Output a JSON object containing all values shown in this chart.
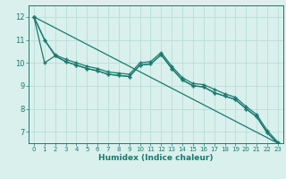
{
  "xlabel": "Humidex (Indice chaleur)",
  "bg_color": "#d9f0ed",
  "grid_color": "#b8ddd8",
  "line_color": "#1a7a6e",
  "xlim": [
    -0.5,
    23.5
  ],
  "ylim": [
    6.5,
    12.5
  ],
  "yticks": [
    7,
    8,
    9,
    10,
    11,
    12
  ],
  "xticks": [
    0,
    1,
    2,
    3,
    4,
    5,
    6,
    7,
    8,
    9,
    10,
    11,
    12,
    13,
    14,
    15,
    16,
    17,
    18,
    19,
    20,
    21,
    22,
    23
  ],
  "series1": [
    12.0,
    11.0,
    10.35,
    10.15,
    10.0,
    9.85,
    9.75,
    9.6,
    9.55,
    9.5,
    10.0,
    10.05,
    10.45,
    9.85,
    9.35,
    9.1,
    9.05,
    8.85,
    8.65,
    8.5,
    8.1,
    7.75,
    7.05,
    6.55
  ],
  "series2": [
    12.0,
    11.0,
    10.3,
    10.05,
    9.9,
    9.75,
    9.65,
    9.5,
    9.45,
    9.4,
    9.9,
    9.95,
    10.35,
    9.75,
    9.25,
    9.0,
    8.95,
    8.7,
    8.55,
    8.4,
    8.0,
    7.65,
    6.95,
    6.5
  ],
  "series3": [
    12.0,
    10.0,
    10.3,
    10.05,
    9.9,
    9.75,
    9.65,
    9.5,
    9.45,
    9.4,
    9.9,
    9.95,
    10.35,
    9.75,
    9.25,
    9.0,
    8.95,
    8.7,
    8.55,
    8.4,
    8.0,
    7.65,
    6.95,
    6.5
  ]
}
